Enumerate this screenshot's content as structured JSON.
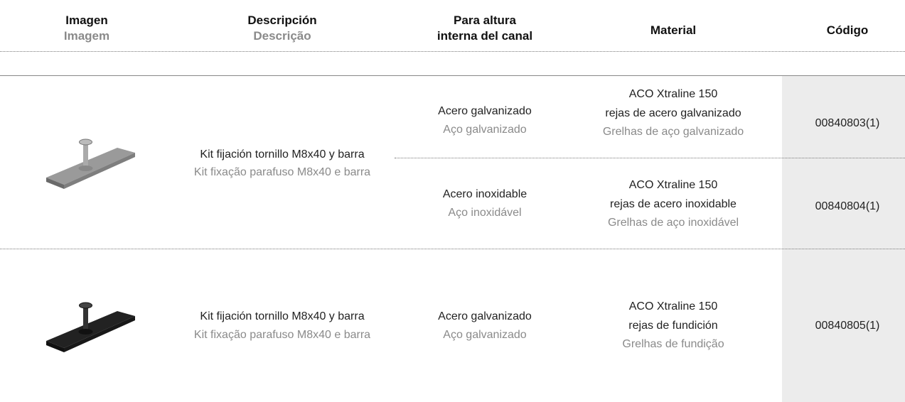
{
  "header": {
    "columns": [
      {
        "es": "Imagen",
        "pt": "Imagem"
      },
      {
        "es": "Descripción",
        "pt": "Descrição"
      },
      {
        "line1": "Para altura",
        "line2": "interna del canal"
      },
      {
        "es": "Material"
      },
      {
        "es": "Código"
      }
    ]
  },
  "rows": [
    {
      "description": {
        "es": "Kit fijación tornillo M8x40 y barra",
        "pt": "Kit fixação parafuso M8x40 e barra"
      },
      "variants": [
        {
          "finish": {
            "es": "Acero galvanizado",
            "pt": "Aço galvanizado"
          },
          "material": {
            "line1": "ACO Xtraline 150",
            "line2": "rejas de acero galvanizado",
            "pt": "Grelhas de aço galvanizado"
          },
          "code": "00840803(1)"
        },
        {
          "finish": {
            "es": "Acero inoxidable",
            "pt": "Aço inoxidável"
          },
          "material": {
            "line1": "ACO Xtraline 150",
            "line2": "rejas de acero inoxidable",
            "pt": "Grelhas de aço inoxidável"
          },
          "code": "00840804(1)"
        }
      ]
    },
    {
      "description": {
        "es": "Kit fijación tornillo M8x40 y barra",
        "pt": "Kit fixação parafuso M8x40 e barra"
      },
      "variants": [
        {
          "finish": {
            "es": "Acero galvanizado",
            "pt": "Aço galvanizado"
          },
          "material": {
            "line1": "ACO Xtraline 150",
            "line2": "rejas de fundición",
            "pt": "Grelhas de fundição"
          },
          "code": "00840805(1)"
        }
      ]
    }
  ]
}
